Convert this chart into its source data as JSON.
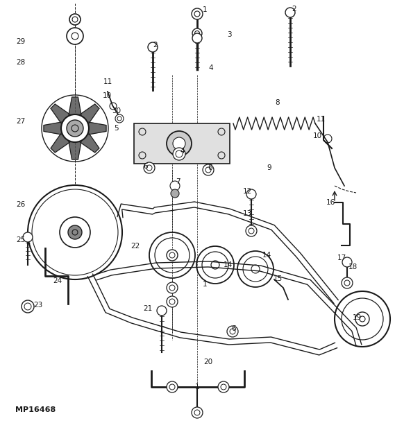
{
  "bg_color": "#ffffff",
  "line_color": "#1a1a1a",
  "text_color": "#1a1a1a",
  "figsize": [
    5.69,
    6.1
  ],
  "dpi": 100,
  "watermark": "MP16468"
}
